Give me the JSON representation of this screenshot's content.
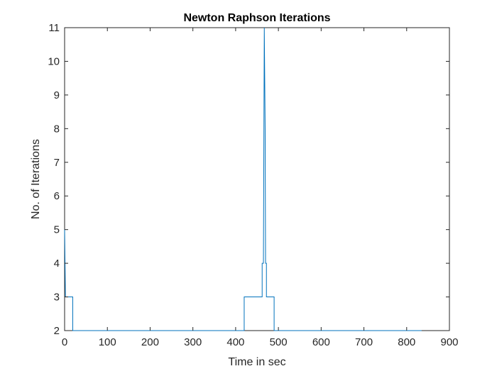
{
  "chart_data": {
    "type": "line",
    "title": "Newton Raphson Iterations",
    "xlabel": "Time in sec",
    "ylabel": "No. of Iterations",
    "xlim": [
      0,
      900
    ],
    "ylim": [
      2,
      11
    ],
    "xticks": [
      0,
      100,
      200,
      300,
      400,
      500,
      600,
      700,
      800,
      900
    ],
    "yticks": [
      2,
      3,
      4,
      5,
      6,
      7,
      8,
      9,
      10,
      11
    ],
    "grid": false,
    "box": true,
    "series": [
      {
        "color": "#0072BD",
        "x": [
          0,
          2,
          2,
          19,
          19,
          420,
          420,
          462,
          462,
          465,
          467,
          469,
          470,
          472,
          472,
          490,
          490,
          835
        ],
        "y": [
          5,
          3,
          3,
          3,
          2,
          2,
          3,
          3,
          4,
          4,
          11,
          8,
          4,
          4,
          3,
          3,
          2,
          2
        ]
      }
    ]
  }
}
